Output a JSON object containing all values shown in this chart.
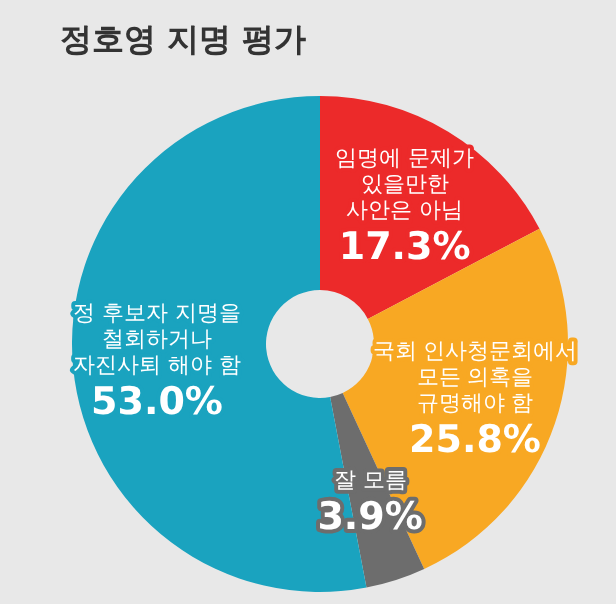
{
  "chart_data": {
    "type": "donut",
    "title": "정호영 지명 평가",
    "categories": [
      "임명에 문제가\n있을만한\n사안은 아님",
      "국회 인사청문회에서\n모든 의혹을\n규명해야 함",
      "잘 모름",
      "정 후보자 지명을\n철회하거나\n자진사퇴 해야 함"
    ],
    "values": [
      17.3,
      25.8,
      3.9,
      53.0
    ],
    "value_labels": [
      "17.3%",
      "25.8%",
      "3.9%",
      "53.0%"
    ],
    "colors": [
      "#ec2a2a",
      "#f8a823",
      "#6d6d6d",
      "#1aa3bf"
    ],
    "legend": false
  }
}
